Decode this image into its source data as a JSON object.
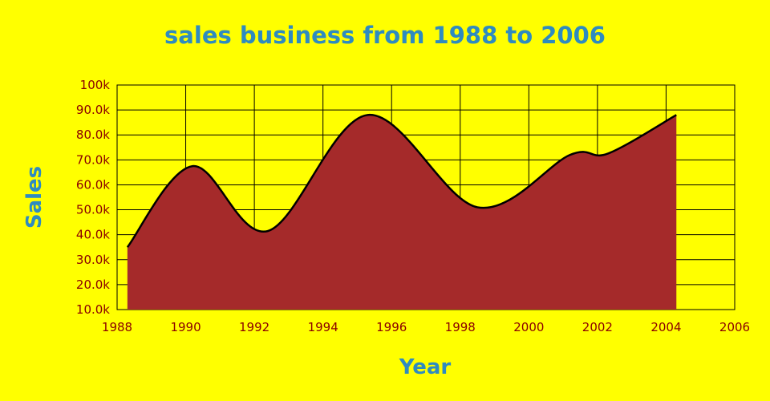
{
  "chart_data": {
    "type": "area",
    "title": "sales business from 1988 to 2006",
    "xlabel": "Year",
    "ylabel": "Sales",
    "xlim": [
      1988,
      2006
    ],
    "ylim": [
      10000,
      100000
    ],
    "x_ticks": [
      "1988",
      "1990",
      "1992",
      "1994",
      "1996",
      "1998",
      "2000",
      "2002",
      "2004",
      "2006"
    ],
    "y_ticks": [
      "10.0k",
      "20.0k",
      "30.0k",
      "40.0k",
      "50.0k",
      "60.0k",
      "70.0k",
      "80.0k",
      "90.0k",
      "100k"
    ],
    "grid": true,
    "series": [
      {
        "x": [
          1988.3,
          1990.2,
          1992.4,
          1995.3,
          1998.5,
          2001.2,
          2002.3,
          2004.3
        ],
        "values": [
          35000,
          67500,
          41500,
          88000,
          51000,
          72000,
          72500,
          88000
        ]
      }
    ],
    "colors": {
      "background": "#ffff00",
      "area_fill": "#a52a2a",
      "line": "#000000",
      "title": "#2e8bc0",
      "tick_label": "#8b0000",
      "grid": "#000000"
    }
  }
}
